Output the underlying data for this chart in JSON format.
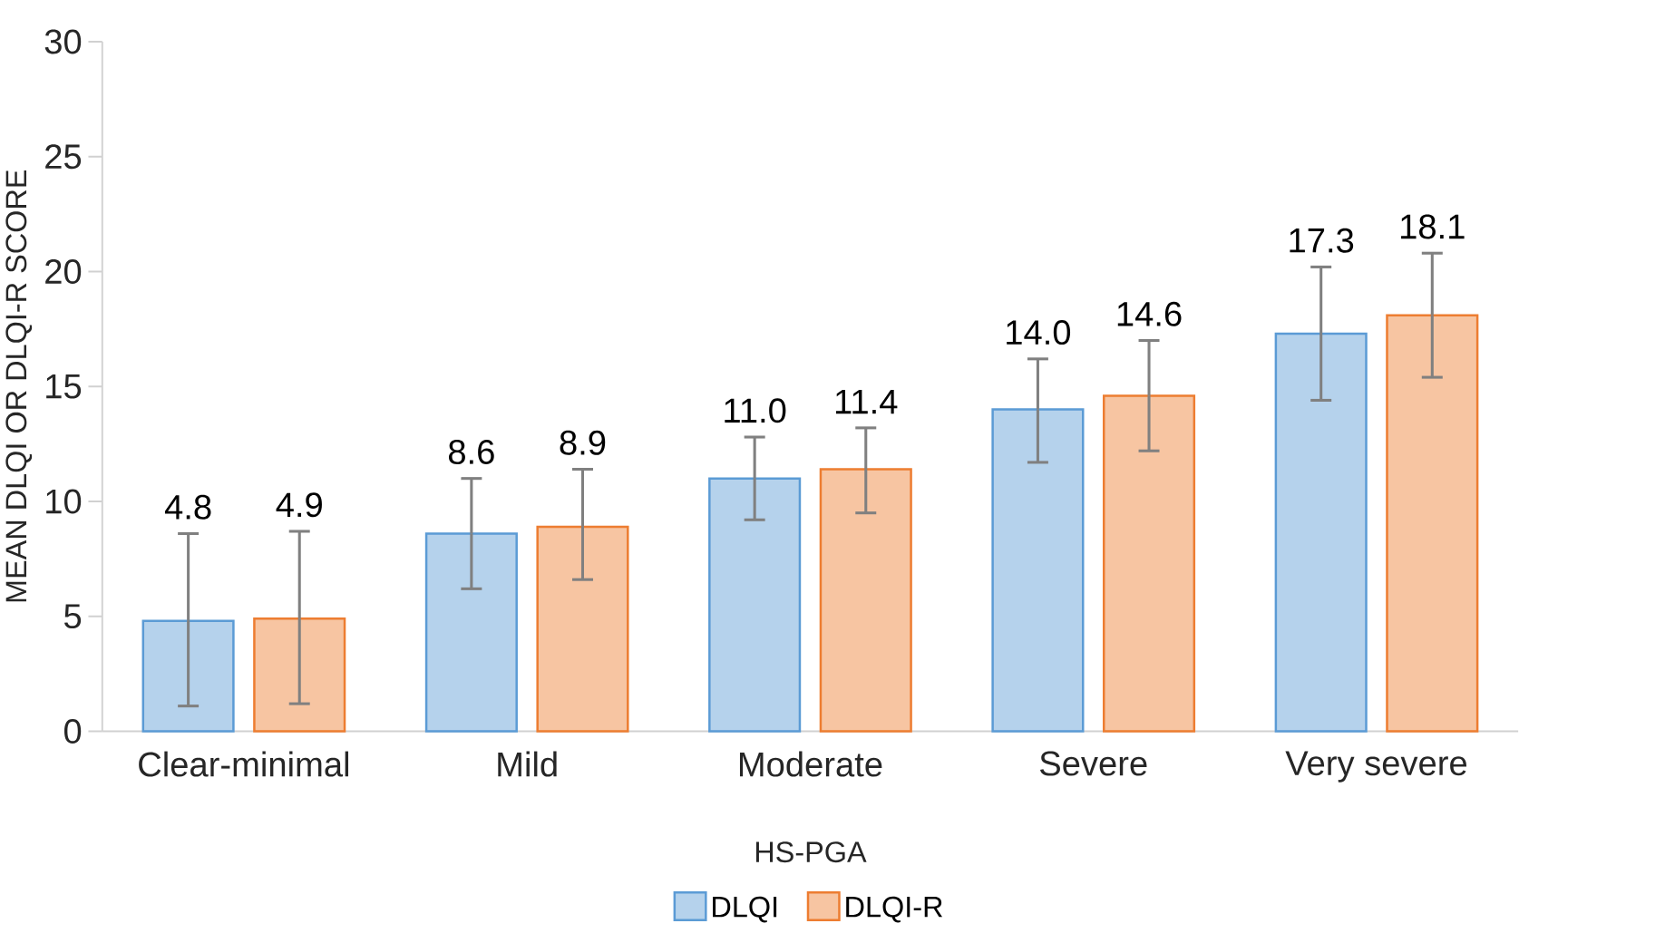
{
  "chart_data": {
    "type": "bar",
    "xlabel": "HS-PGA",
    "ylabel": "MEAN DLQI OR DLQI-R SCORE",
    "categories": [
      "Clear-minimal",
      "Mild",
      "Moderate",
      "Severe",
      "Very severe"
    ],
    "series": [
      {
        "name": "DLQI",
        "color": "#5b9bd5",
        "values": [
          4.8,
          8.6,
          11.0,
          14.0,
          17.3
        ],
        "value_labels": [
          "4.8",
          "8.6",
          "11.0",
          "14.0",
          "17.3"
        ],
        "errors": [
          [
            1.1,
            8.6
          ],
          [
            6.2,
            11.0
          ],
          [
            9.2,
            12.8
          ],
          [
            11.7,
            16.2
          ],
          [
            14.4,
            20.2
          ]
        ]
      },
      {
        "name": "DLQI-R",
        "color": "#ed7d31",
        "values": [
          4.9,
          8.9,
          11.4,
          14.6,
          18.1
        ],
        "value_labels": [
          "4.9",
          "8.9",
          "11.4",
          "14.6",
          "18.1"
        ],
        "errors": [
          [
            1.2,
            8.7
          ],
          [
            6.6,
            11.4
          ],
          [
            9.5,
            13.2
          ],
          [
            12.2,
            17.0
          ],
          [
            15.4,
            20.8
          ]
        ]
      }
    ],
    "ylim": [
      0,
      30
    ],
    "yticks": [
      0,
      5,
      10,
      15,
      20,
      25,
      30
    ],
    "grid": false,
    "legend": "bottom"
  }
}
